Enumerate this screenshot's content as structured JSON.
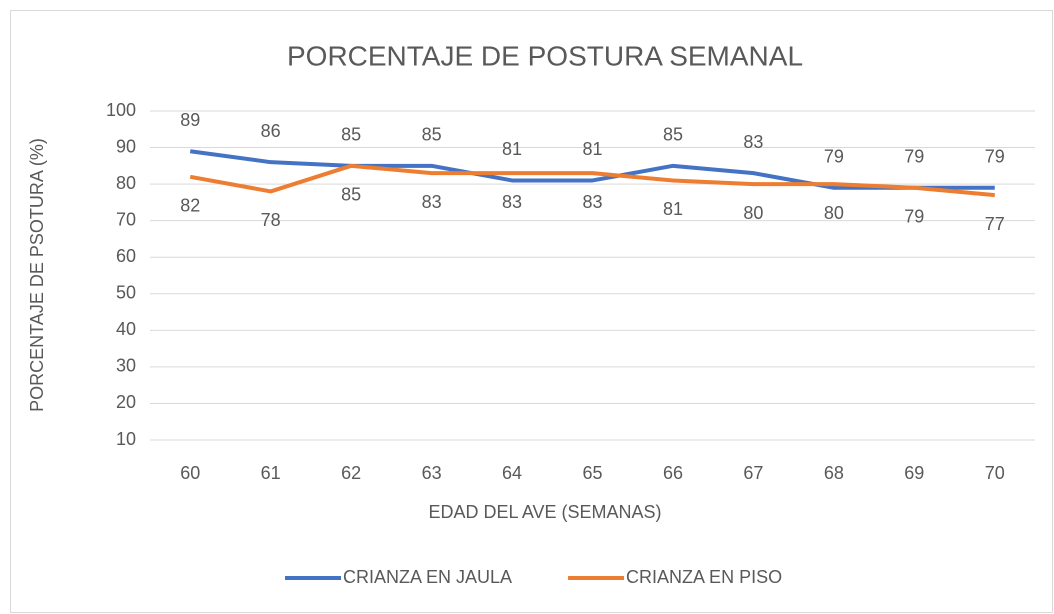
{
  "chart_data": {
    "type": "line",
    "title": "PORCENTAJE DE POSTURA SEMANAL",
    "x_label": "EDAD DEL AVE (SEMANAS)",
    "y_label": "PORCENTAJE DE PSOTURA (%)",
    "categories": [
      "60",
      "61",
      "62",
      "63",
      "64",
      "65",
      "66",
      "67",
      "68",
      "69",
      "70"
    ],
    "series": [
      {
        "name": "CRIANZA EN JAULA",
        "color": "#4472c4",
        "values": [
          89,
          86,
          85,
          85,
          81,
          81,
          85,
          83,
          79,
          79,
          79
        ]
      },
      {
        "name": "CRIANZA EN PISO",
        "color": "#ed7d31",
        "values": [
          82,
          78,
          85,
          83,
          83,
          83,
          81,
          80,
          80,
          79,
          77
        ]
      }
    ],
    "ylim": [
      10,
      100
    ],
    "yticks": [
      10,
      20,
      30,
      40,
      50,
      60,
      70,
      80,
      90,
      100
    ],
    "grid": true,
    "legend": "bottom"
  }
}
